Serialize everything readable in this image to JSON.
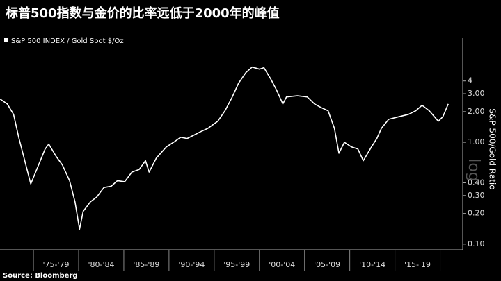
{
  "chart_data": {
    "type": "line",
    "title": "标普500指数与金价的比率远低于2000年的峰值",
    "legend_label": "S&P 500 INDEX / Gold Spot  $/Oz",
    "y_axis_label": "S&P 500/Gold Ratio",
    "scale_watermark": "log",
    "source": "Source: Bloomberg",
    "yscale": "log",
    "grid": false,
    "color": "#ffffff",
    "xlim": [
      1971.3,
      2022.5
    ],
    "ylim": [
      0.088,
      9
    ],
    "xticks": [
      {
        "value": 1977.5,
        "label": "'75-'79"
      },
      {
        "value": 1982.5,
        "label": "'80-'84"
      },
      {
        "value": 1987.5,
        "label": "'85-'89"
      },
      {
        "value": 1992.5,
        "label": "'90-'94"
      },
      {
        "value": 1997.5,
        "label": "'95-'99"
      },
      {
        "value": 2002.5,
        "label": "'00-'04"
      },
      {
        "value": 2007.5,
        "label": "'05-'09"
      },
      {
        "value": 2012.5,
        "label": "'10-'14"
      },
      {
        "value": 2017.5,
        "label": "'15-'19"
      }
    ],
    "yticks": [
      4,
      {
        "value": 3,
        "label": "3.00"
      },
      {
        "value": 2,
        "label": "2.00"
      },
      {
        "value": 1,
        "label": "1.00"
      },
      {
        "value": 0.4,
        "label": "0.40"
      },
      {
        "value": 0.3,
        "label": "0.30"
      },
      {
        "value": 0.2,
        "label": "0.20"
      },
      {
        "value": 0.1,
        "label": "0.10"
      }
    ],
    "x": [
      1971.3,
      1972.1,
      1972.8,
      1973.4,
      1974.0,
      1974.7,
      1975.5,
      1976.3,
      1976.7,
      1977.5,
      1978.2,
      1979.0,
      1979.6,
      1980.1,
      1980.5,
      1981.3,
      1982.0,
      1982.8,
      1983.6,
      1984.3,
      1985.1,
      1985.9,
      1986.7,
      1987.4,
      1987.8,
      1988.6,
      1989.7,
      1990.5,
      1991.3,
      1992.0,
      1992.8,
      1993.5,
      1994.3,
      1995.4,
      1996.2,
      1997.0,
      1997.7,
      1998.5,
      1999.2,
      2000.0,
      2000.5,
      2001.3,
      2001.9,
      2002.6,
      2003.0,
      2004.2,
      2005.3,
      2006.1,
      2006.8,
      2007.6,
      2008.3,
      2008.8,
      2009.4,
      2010.2,
      2010.9,
      2011.5,
      2012.4,
      2013.0,
      2013.5,
      2014.3,
      2015.4,
      2016.5,
      2017.3,
      2018.0,
      2018.8,
      2019.8,
      2020.3,
      2020.9
    ],
    "values": [
      2.66,
      2.38,
      1.88,
      1.09,
      0.68,
      0.39,
      0.58,
      0.86,
      0.96,
      0.73,
      0.6,
      0.42,
      0.26,
      0.14,
      0.21,
      0.26,
      0.29,
      0.36,
      0.37,
      0.42,
      0.41,
      0.51,
      0.54,
      0.66,
      0.51,
      0.7,
      0.9,
      1.0,
      1.12,
      1.09,
      1.18,
      1.27,
      1.37,
      1.61,
      2.04,
      2.79,
      3.81,
      4.83,
      5.47,
      5.22,
      5.4,
      4.13,
      3.26,
      2.38,
      2.79,
      2.86,
      2.79,
      2.38,
      2.2,
      2.04,
      1.37,
      0.78,
      1.0,
      0.9,
      0.86,
      0.66,
      0.9,
      1.09,
      1.37,
      1.68,
      1.78,
      1.88,
      2.04,
      2.31,
      2.04,
      1.61,
      1.78,
      2.38
    ]
  }
}
